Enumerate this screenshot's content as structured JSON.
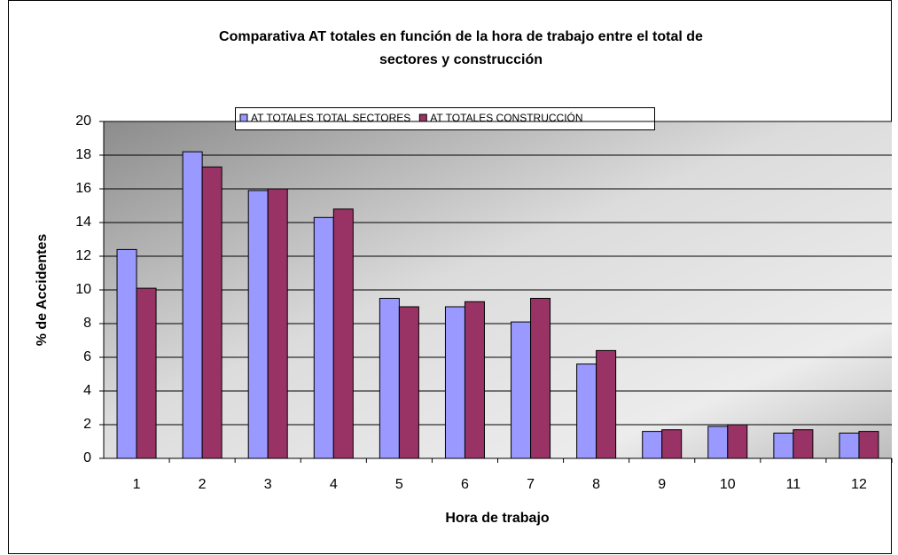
{
  "chart_data": {
    "type": "bar",
    "title": [
      "Comparativa AT totales en función de la hora de trabajo entre el total de",
      "sectores y construcción"
    ],
    "x_label": "Hora de trabajo",
    "y_label": "% de Accidentes",
    "categories": [
      "1",
      "2",
      "3",
      "4",
      "5",
      "6",
      "7",
      "8",
      "9",
      "10",
      "11",
      "12"
    ],
    "series": [
      {
        "name": "AT TOTALES TOTAL SECTORES",
        "color": "#9999ff",
        "values": [
          12.4,
          18.2,
          15.9,
          14.3,
          9.5,
          9.0,
          8.1,
          5.6,
          1.6,
          1.9,
          1.5,
          1.5
        ]
      },
      {
        "name": "AT TOTALES CONSTRUCCIÓN",
        "color": "#993366",
        "values": [
          10.1,
          17.3,
          16.0,
          14.8,
          9.0,
          9.3,
          9.5,
          6.4,
          1.7,
          2.0,
          1.7,
          1.6
        ]
      }
    ],
    "ylim": [
      0,
      20
    ],
    "yticks": [
      0,
      2,
      4,
      6,
      8,
      10,
      12,
      14,
      16,
      18,
      20
    ],
    "grid": true,
    "legend": "top"
  }
}
